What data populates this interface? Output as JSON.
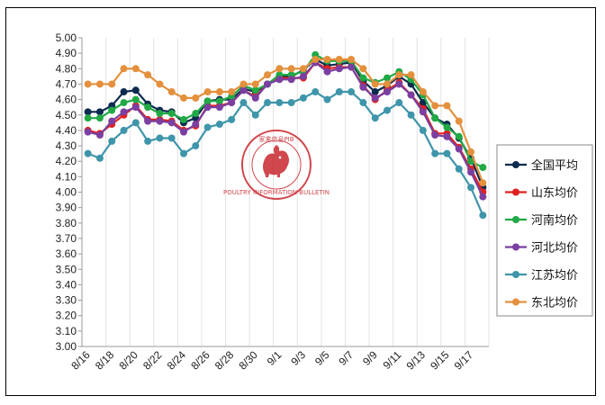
{
  "chart_data": {
    "type": "line",
    "title": "",
    "xlabel": "",
    "ylabel": "",
    "ylim": [
      3.0,
      5.0
    ],
    "yticks": [
      "5.00",
      "4.90",
      "4.80",
      "4.70",
      "4.60",
      "4.50",
      "4.40",
      "4.30",
      "4.20",
      "4.10",
      "4.00",
      "3.90",
      "3.80",
      "3.70",
      "3.60",
      "3.50",
      "3.40",
      "3.30",
      "3.20",
      "3.10",
      "3.00"
    ],
    "x": [
      "8/16",
      "8/17",
      "8/18",
      "8/19",
      "8/20",
      "8/21",
      "8/22",
      "8/23",
      "8/24",
      "8/25",
      "8/26",
      "8/27",
      "8/28",
      "8/29",
      "8/30",
      "8/31",
      "9/1",
      "9/2",
      "9/3",
      "9/4",
      "9/5",
      "9/6",
      "9/7",
      "9/8",
      "9/9",
      "9/10",
      "9/11",
      "9/12",
      "9/13",
      "9/14",
      "9/15",
      "9/16",
      "9/17",
      "9/18"
    ],
    "xtick_labels": [
      "8/16",
      "8/18",
      "8/20",
      "8/22",
      "8/24",
      "8/26",
      "8/28",
      "8/30",
      "9/1",
      "9/3",
      "9/5",
      "9/7",
      "9/9",
      "9/11",
      "9/13",
      "9/15",
      "9/17"
    ],
    "grid": "vertical",
    "legend_position": "right",
    "series": [
      {
        "name": "全国平均",
        "color": "#0d2a4f",
        "values": [
          4.52,
          4.52,
          4.56,
          4.65,
          4.66,
          4.57,
          4.53,
          4.52,
          4.45,
          4.48,
          4.59,
          4.6,
          4.6,
          4.67,
          4.65,
          4.7,
          4.75,
          4.75,
          4.79,
          4.86,
          4.82,
          4.83,
          4.84,
          4.72,
          4.65,
          4.69,
          4.75,
          4.7,
          4.58,
          4.48,
          4.44,
          4.35,
          4.22,
          4.03
        ]
      },
      {
        "name": "山东均价",
        "color": "#e0211f",
        "values": [
          4.4,
          4.38,
          4.44,
          4.5,
          4.56,
          4.47,
          4.47,
          4.46,
          4.4,
          4.43,
          4.56,
          4.56,
          4.58,
          4.66,
          4.62,
          4.7,
          4.74,
          4.74,
          4.74,
          4.84,
          4.8,
          4.81,
          4.81,
          4.69,
          4.6,
          4.66,
          4.71,
          4.63,
          4.54,
          4.38,
          4.38,
          4.29,
          4.15,
          4.0
        ]
      },
      {
        "name": "河南均价",
        "color": "#21a945",
        "values": [
          4.48,
          4.48,
          4.53,
          4.58,
          4.6,
          4.55,
          4.51,
          4.51,
          4.47,
          4.51,
          4.59,
          4.59,
          4.62,
          4.69,
          4.66,
          4.7,
          4.76,
          4.76,
          4.78,
          4.89,
          4.85,
          4.85,
          4.85,
          4.74,
          4.71,
          4.74,
          4.78,
          4.73,
          4.63,
          4.48,
          4.42,
          4.36,
          4.2,
          4.16
        ]
      },
      {
        "name": "河北均价",
        "color": "#7a3fa0",
        "values": [
          4.39,
          4.37,
          4.46,
          4.52,
          4.55,
          4.46,
          4.46,
          4.45,
          4.39,
          4.44,
          4.55,
          4.55,
          4.58,
          4.66,
          4.61,
          4.7,
          4.73,
          4.73,
          4.75,
          4.84,
          4.78,
          4.8,
          4.81,
          4.68,
          4.61,
          4.65,
          4.7,
          4.63,
          4.52,
          4.37,
          4.36,
          4.28,
          4.13,
          3.97
        ]
      },
      {
        "name": "江苏均价",
        "color": "#3f95aa",
        "values": [
          4.25,
          4.22,
          4.33,
          4.4,
          4.45,
          4.33,
          4.35,
          4.35,
          4.25,
          4.3,
          4.42,
          4.44,
          4.47,
          4.58,
          4.5,
          4.58,
          4.58,
          4.58,
          4.61,
          4.65,
          4.6,
          4.65,
          4.65,
          4.58,
          4.48,
          4.53,
          4.58,
          4.5,
          4.4,
          4.25,
          4.25,
          4.15,
          4.03,
          3.85
        ]
      },
      {
        "name": "东北均价",
        "color": "#e4903d",
        "values": [
          4.7,
          4.7,
          4.7,
          4.8,
          4.8,
          4.76,
          4.7,
          4.65,
          4.61,
          4.61,
          4.65,
          4.65,
          4.65,
          4.7,
          4.7,
          4.76,
          4.8,
          4.8,
          4.8,
          4.86,
          4.86,
          4.86,
          4.86,
          4.8,
          4.7,
          4.7,
          4.76,
          4.76,
          4.65,
          4.56,
          4.56,
          4.46,
          4.26,
          4.06
        ]
      }
    ]
  },
  "watermark": {
    "text": "家禽信息PIB",
    "subtext": "POULTRY INFORMATION BULLETIN"
  }
}
